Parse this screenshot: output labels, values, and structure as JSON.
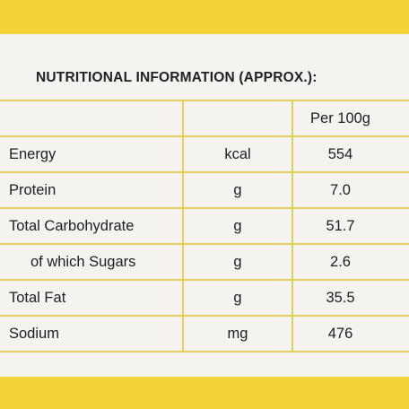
{
  "header": {
    "title": "NUTRITIONAL INFORMATION (APPROX.):"
  },
  "table": {
    "column_header": "Per 100g",
    "rows": [
      [
        "Energy",
        "kcal",
        "554"
      ],
      [
        "Protein",
        "g",
        "7.0"
      ],
      [
        "Total Carbohydrate",
        "g",
        "51.7"
      ],
      [
        "of which Sugars",
        "g",
        "2.6"
      ],
      [
        "Total Fat",
        "g",
        "35.5"
      ],
      [
        "Sodium",
        "mg",
        "476"
      ]
    ]
  }
}
